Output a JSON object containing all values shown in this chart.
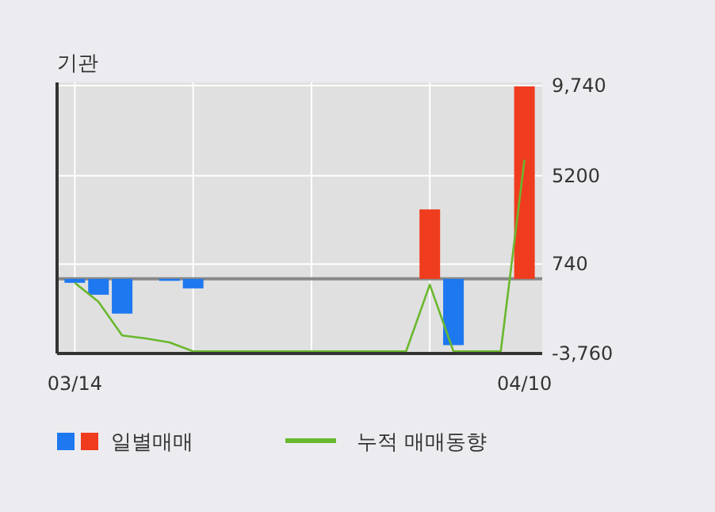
{
  "chart_data": {
    "type": "bar",
    "title": "기관",
    "categories": [
      "03/14",
      null,
      null,
      null,
      null,
      null,
      null,
      null,
      null,
      null,
      null,
      null,
      null,
      null,
      null,
      null,
      null,
      null,
      null,
      "04/10"
    ],
    "series": [
      {
        "name": "일별매매",
        "values": [
          -200,
          -800,
          -1750,
          0,
          -100,
          -480,
          0,
          0,
          0,
          0,
          0,
          0,
          0,
          0,
          0,
          3500,
          -3340,
          0,
          0,
          9700
        ],
        "colors": [
          "#1e78f0",
          "#1e78f0",
          "#1e78f0",
          "#1e78f0",
          "#1e78f0",
          "#1e78f0",
          "#1e78f0",
          "#1e78f0",
          "#1e78f0",
          "#1e78f0",
          "#1e78f0",
          "#1e78f0",
          "#1e78f0",
          "#1e78f0",
          "#1e78f0",
          "#f03c1e",
          "#1e78f0",
          "#1e78f0",
          "#1e78f0",
          "#f03c1e"
        ]
      },
      {
        "type": "line",
        "name": "누적 매매동향",
        "color": "#6ab82e",
        "values": [
          -200,
          -1150,
          -2850,
          -3000,
          -3200,
          -3650,
          -3650,
          -3650,
          -3650,
          -3650,
          -3650,
          -3650,
          -3650,
          -3650,
          -3650,
          -290,
          -3650,
          -3650,
          -3650,
          6000
        ]
      }
    ],
    "ylim": [
      -3760,
      9740
    ],
    "yticks": [
      {
        "value": 9740,
        "label": "9,740"
      },
      5200,
      740,
      {
        "value": -3760,
        "label": "-3,760"
      }
    ],
    "grid": true,
    "legend": "bottom"
  }
}
